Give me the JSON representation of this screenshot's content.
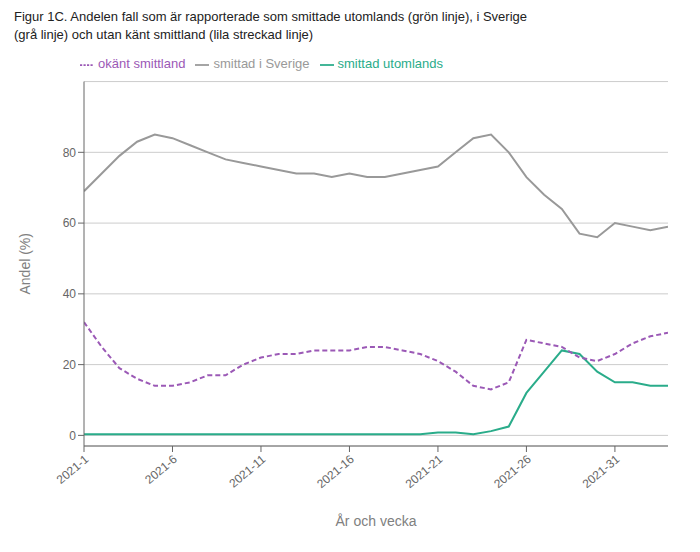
{
  "chart_data": {
    "type": "line",
    "title": "Figur 1C. Andelen fall som är rapporterade som smittade utomlands (grön linje), i Sverige",
    "subtitle": "(grå linje) och utan känt smittland (lila streckad linje)",
    "xlabel": "År och vecka",
    "ylabel": "Andel (%)",
    "x": [
      1,
      2,
      3,
      4,
      5,
      6,
      7,
      8,
      9,
      10,
      11,
      12,
      13,
      14,
      15,
      16,
      17,
      18,
      19,
      20,
      21,
      22,
      23,
      24,
      25,
      26,
      27,
      28,
      29,
      30,
      31,
      32,
      33,
      34
    ],
    "series": [
      {
        "name": "smittad i Sverige",
        "color": "#999999",
        "line_style": "solid",
        "values": [
          69,
          74,
          79,
          83,
          85,
          84,
          82,
          80,
          78,
          77,
          76,
          75,
          74,
          74,
          73,
          74,
          73,
          73,
          74,
          75,
          76,
          80,
          84,
          85,
          80,
          73,
          68,
          64,
          57,
          56,
          60,
          59,
          58,
          59
        ]
      },
      {
        "name": "smittad utomlands",
        "color": "#2aac8a",
        "line_style": "solid",
        "values": [
          0.3,
          0.3,
          0.3,
          0.3,
          0.3,
          0.3,
          0.3,
          0.3,
          0.3,
          0.3,
          0.3,
          0.3,
          0.3,
          0.3,
          0.3,
          0.3,
          0.3,
          0.3,
          0.3,
          0.3,
          0.8,
          0.8,
          0.3,
          1.2,
          2.5,
          12,
          18,
          24,
          23,
          18,
          15,
          15,
          14,
          14
        ]
      },
      {
        "name": "okänt smittland",
        "color": "#9b59b6",
        "line_style": "dashed",
        "values": [
          32,
          25,
          19,
          16,
          14,
          14,
          15,
          17,
          17,
          20,
          22,
          23,
          23,
          24,
          24,
          24,
          25,
          25,
          24,
          23,
          21,
          18,
          14,
          13,
          15,
          27,
          26,
          25,
          22,
          21,
          23,
          26,
          28,
          29
        ]
      }
    ],
    "xlim": [
      1,
      34
    ],
    "xticks": [
      {
        "value": 1,
        "label": "2021-1"
      },
      {
        "value": 6,
        "label": "2021-6"
      },
      {
        "value": 11,
        "label": "2021-11"
      },
      {
        "value": 16,
        "label": "2021-16"
      },
      {
        "value": 21,
        "label": "2021-21"
      },
      {
        "value": 26,
        "label": "2021-26"
      },
      {
        "value": 31,
        "label": "2021-31"
      }
    ],
    "ylim": [
      -3,
      100
    ],
    "yticks": [
      0,
      20,
      40,
      60,
      80
    ],
    "grid": true,
    "legend": "top"
  }
}
